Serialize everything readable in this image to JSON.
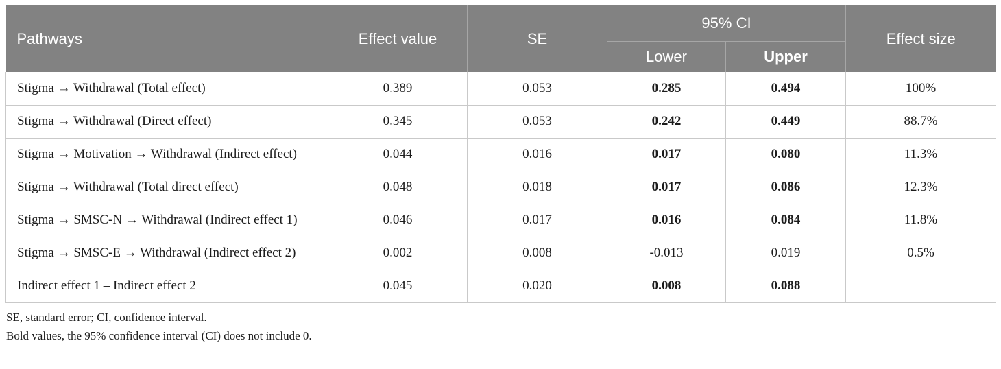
{
  "table": {
    "header": {
      "pathways": "Pathways",
      "effect_value": "Effect value",
      "se": "SE",
      "ci": "95% CI",
      "ci_lower": "Lower",
      "ci_upper": "Upper",
      "effect_size": "Effect size"
    },
    "rows": [
      {
        "pathway": "Stigma → Withdrawal (Total effect)",
        "effect_value": "0.389",
        "se": "0.053",
        "ci_lower": "0.285",
        "ci_upper": "0.494",
        "effect_size": "100%",
        "ci_significant": true
      },
      {
        "pathway": "Stigma → Withdrawal (Direct effect)",
        "effect_value": "0.345",
        "se": "0.053",
        "ci_lower": "0.242",
        "ci_upper": "0.449",
        "effect_size": "88.7%",
        "ci_significant": true
      },
      {
        "pathway": "Stigma → Motivation → Withdrawal (Indirect effect)",
        "effect_value": "0.044",
        "se": "0.016",
        "ci_lower": "0.017",
        "ci_upper": "0.080",
        "effect_size": "11.3%",
        "ci_significant": true
      },
      {
        "pathway": "Stigma → Withdrawal (Total direct effect)",
        "effect_value": "0.048",
        "se": "0.018",
        "ci_lower": "0.017",
        "ci_upper": "0.086",
        "effect_size": "12.3%",
        "ci_significant": true
      },
      {
        "pathway": "Stigma → SMSC-N → Withdrawal (Indirect effect 1)",
        "effect_value": "0.046",
        "se": "0.017",
        "ci_lower": "0.016",
        "ci_upper": "0.084",
        "effect_size": "11.8%",
        "ci_significant": true
      },
      {
        "pathway": "Stigma → SMSC-E → Withdrawal (Indirect effect 2)",
        "effect_value": "0.002",
        "se": "0.008",
        "ci_lower": "-0.013",
        "ci_upper": "0.019",
        "effect_size": "0.5%",
        "ci_significant": false
      },
      {
        "pathway": "Indirect effect 1 – Indirect effect 2",
        "effect_value": "0.045",
        "se": "0.020",
        "ci_lower": "0.008",
        "ci_upper": "0.088",
        "effect_size": "",
        "ci_significant": true
      }
    ],
    "footnotes": [
      "SE, standard error; CI, confidence interval.",
      "Bold values,  the 95% confidence interval (CI) does not include 0."
    ],
    "colors": {
      "header_bg": "#828282",
      "header_text": "#ffffff",
      "header_divider": "#a6a6a6",
      "body_border": "#c9c9c9",
      "body_text": "#1c1c1c"
    }
  }
}
